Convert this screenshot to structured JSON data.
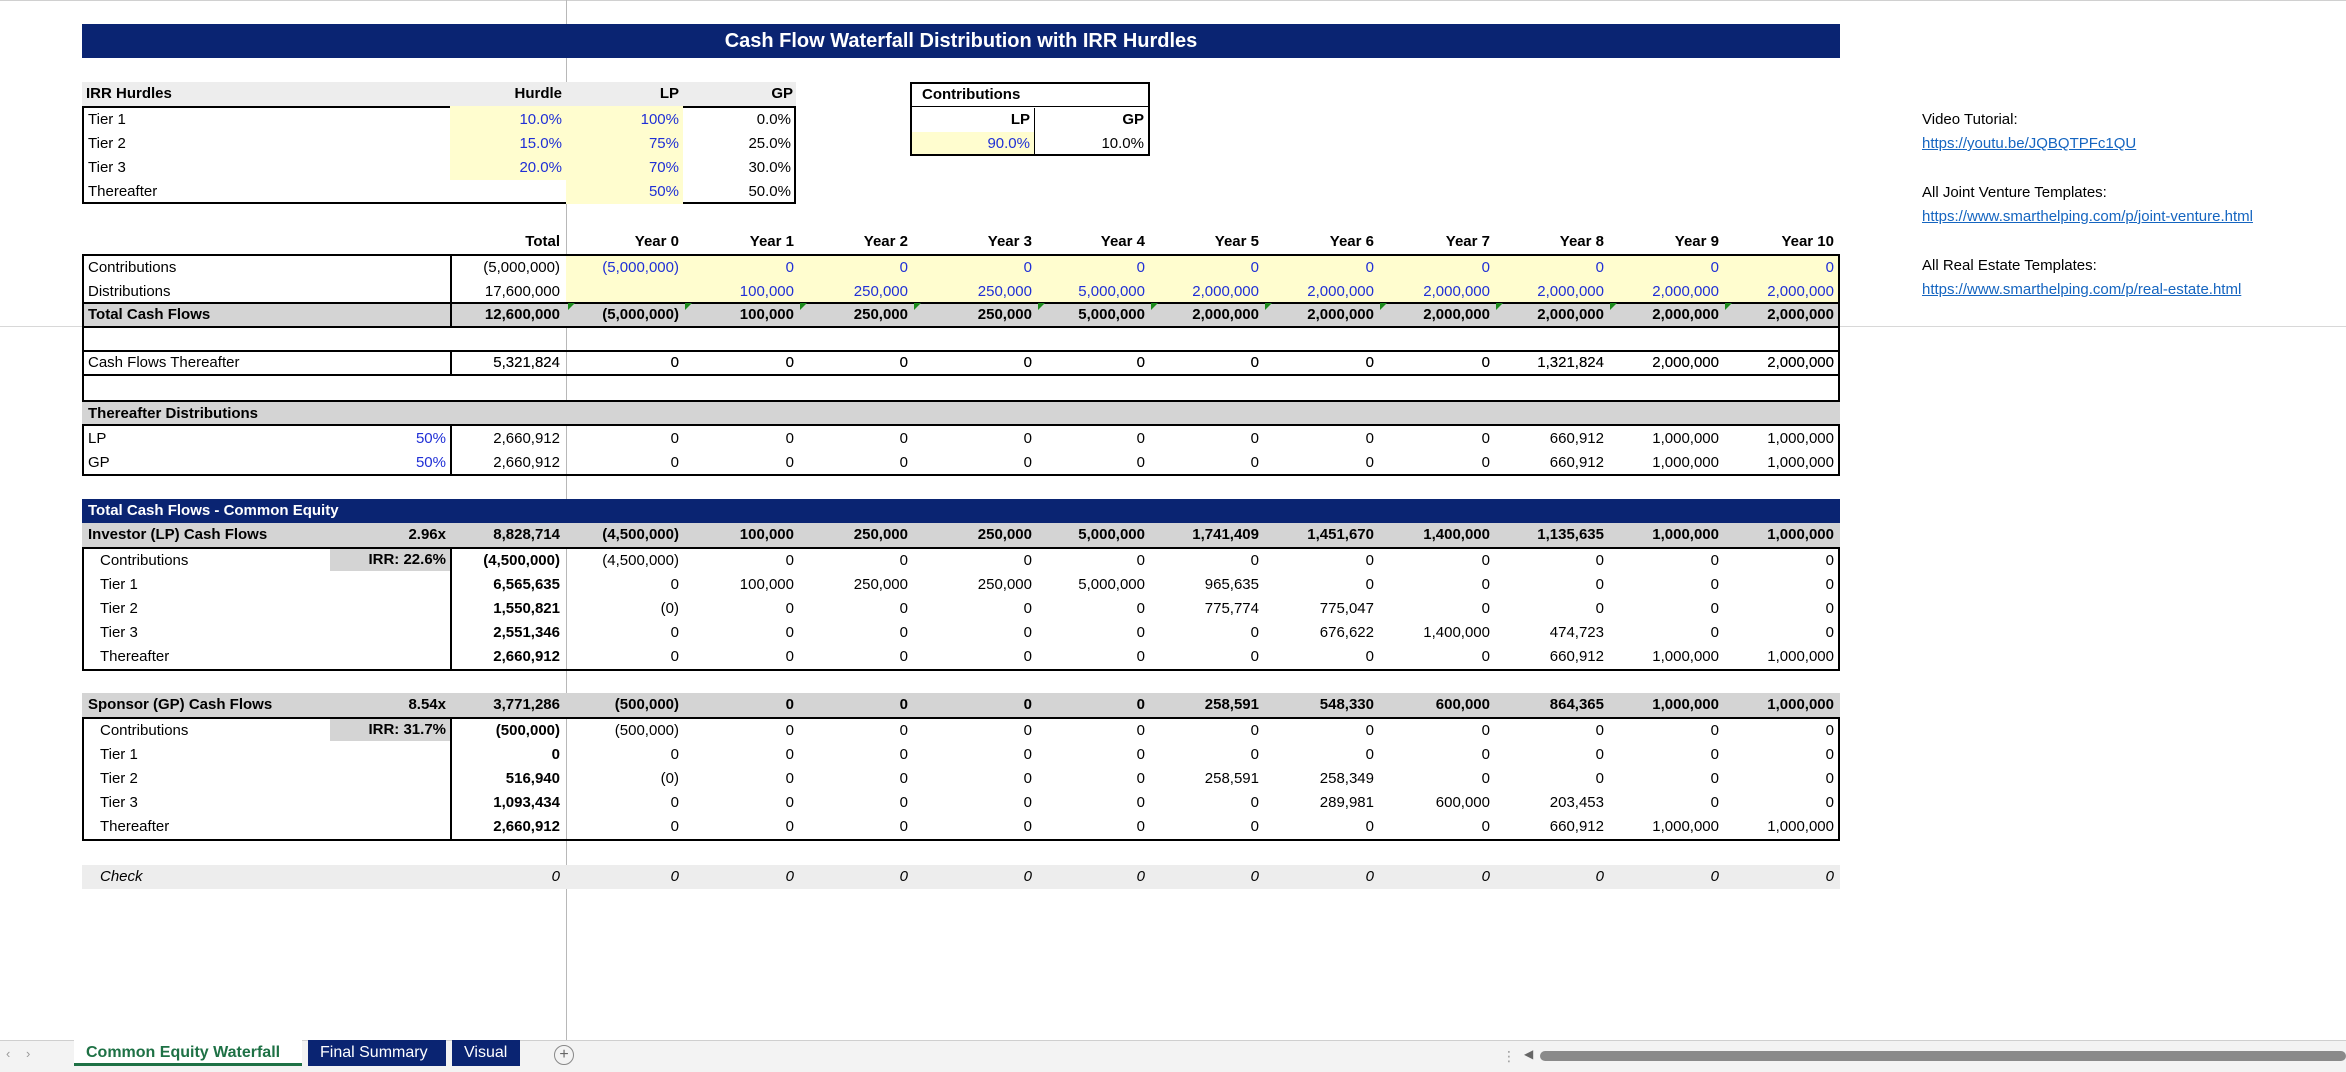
{
  "title": "Cash Flow Waterfall Distribution with IRR Hurdles",
  "hurdles": {
    "headers": [
      "IRR Hurdles",
      "Hurdle",
      "LP",
      "GP"
    ],
    "rows": [
      {
        "name": "Tier 1",
        "hurdle": "10.0%",
        "lp": "100%",
        "gp": "0.0%"
      },
      {
        "name": "Tier 2",
        "hurdle": "15.0%",
        "lp": "75%",
        "gp": "25.0%"
      },
      {
        "name": "Tier 3",
        "hurdle": "20.0%",
        "lp": "70%",
        "gp": "30.0%"
      },
      {
        "name": "Thereafter",
        "hurdle": "",
        "lp": "50%",
        "gp": "50.0%"
      }
    ]
  },
  "contributions_box": {
    "title": "Contributions",
    "lp_label": "LP",
    "gp_label": "GP",
    "lp": "90.0%",
    "gp": "10.0%"
  },
  "links": [
    {
      "label": "Video Tutorial:",
      "url": "https://youtu.be/JQBQTPFc1QU"
    },
    {
      "label": "All Joint Venture Templates:",
      "url": "https://www.smarthelping.com/p/joint-venture.html"
    },
    {
      "label": "All Real Estate Templates:",
      "url": "https://www.smarthelping.com/p/real-estate.html"
    }
  ],
  "columns": [
    "Total",
    "Year 0",
    "Year 1",
    "Year 2",
    "Year 3",
    "Year 4",
    "Year 5",
    "Year 6",
    "Year 7",
    "Year 8",
    "Year 9",
    "Year 10"
  ],
  "cash": {
    "contributions": {
      "label": "Contributions",
      "values": [
        "(5,000,000)",
        "(5,000,000)",
        "0",
        "0",
        "0",
        "0",
        "0",
        "0",
        "0",
        "0",
        "0",
        "0"
      ]
    },
    "distributions": {
      "label": "Distributions",
      "values": [
        "17,600,000",
        "",
        "100,000",
        "250,000",
        "250,000",
        "5,000,000",
        "2,000,000",
        "2,000,000",
        "2,000,000",
        "2,000,000",
        "2,000,000",
        "2,000,000"
      ]
    },
    "total": {
      "label": "Total Cash Flows",
      "values": [
        "12,600,000",
        "(5,000,000)",
        "100,000",
        "250,000",
        "250,000",
        "5,000,000",
        "2,000,000",
        "2,000,000",
        "2,000,000",
        "2,000,000",
        "2,000,000",
        "2,000,000"
      ]
    }
  },
  "thereafter": {
    "label": "Cash Flows Thereafter",
    "values": [
      "5,321,824",
      "0",
      "0",
      "0",
      "0",
      "0",
      "0",
      "0",
      "0",
      "1,321,824",
      "2,000,000",
      "2,000,000"
    ]
  },
  "thereafter_dist": {
    "title": "Thereafter Distributions",
    "rows": [
      {
        "label": "LP",
        "pct": "50%",
        "values": [
          "2,660,912",
          "0",
          "0",
          "0",
          "0",
          "0",
          "0",
          "0",
          "0",
          "660,912",
          "1,000,000",
          "1,000,000"
        ]
      },
      {
        "label": "GP",
        "pct": "50%",
        "values": [
          "2,660,912",
          "0",
          "0",
          "0",
          "0",
          "0",
          "0",
          "0",
          "0",
          "660,912",
          "1,000,000",
          "1,000,000"
        ]
      }
    ]
  },
  "common_equity": {
    "title": "Total Cash Flows - Common Equity",
    "lp": {
      "label": "Investor (LP) Cash Flows",
      "multiple": "2.96x",
      "irr": "IRR: 22.6%",
      "values": [
        "8,828,714",
        "(4,500,000)",
        "100,000",
        "250,000",
        "250,000",
        "5,000,000",
        "1,741,409",
        "1,451,670",
        "1,400,000",
        "1,135,635",
        "1,000,000",
        "1,000,000"
      ],
      "rows": [
        {
          "label": "Contributions",
          "values": [
            "(4,500,000)",
            "(4,500,000)",
            "0",
            "0",
            "0",
            "0",
            "0",
            "0",
            "0",
            "0",
            "0",
            "0"
          ]
        },
        {
          "label": "Tier 1",
          "values": [
            "6,565,635",
            "0",
            "100,000",
            "250,000",
            "250,000",
            "5,000,000",
            "965,635",
            "0",
            "0",
            "0",
            "0",
            "0"
          ]
        },
        {
          "label": "Tier 2",
          "values": [
            "1,550,821",
            "(0)",
            "0",
            "0",
            "0",
            "0",
            "775,774",
            "775,047",
            "0",
            "0",
            "0",
            "0"
          ]
        },
        {
          "label": "Tier 3",
          "values": [
            "2,551,346",
            "0",
            "0",
            "0",
            "0",
            "0",
            "0",
            "676,622",
            "1,400,000",
            "474,723",
            "0",
            "0"
          ]
        },
        {
          "label": "Thereafter",
          "values": [
            "2,660,912",
            "0",
            "0",
            "0",
            "0",
            "0",
            "0",
            "0",
            "0",
            "660,912",
            "1,000,000",
            "1,000,000"
          ]
        }
      ]
    },
    "gp": {
      "label": "Sponsor (GP) Cash Flows",
      "multiple": "8.54x",
      "irr": "IRR: 31.7%",
      "values": [
        "3,771,286",
        "(500,000)",
        "0",
        "0",
        "0",
        "0",
        "258,591",
        "548,330",
        "600,000",
        "864,365",
        "1,000,000",
        "1,000,000"
      ],
      "rows": [
        {
          "label": "Contributions",
          "values": [
            "(500,000)",
            "(500,000)",
            "0",
            "0",
            "0",
            "0",
            "0",
            "0",
            "0",
            "0",
            "0",
            "0"
          ]
        },
        {
          "label": "Tier 1",
          "values": [
            "0",
            "0",
            "0",
            "0",
            "0",
            "0",
            "0",
            "0",
            "0",
            "0",
            "0",
            "0"
          ]
        },
        {
          "label": "Tier 2",
          "values": [
            "516,940",
            "(0)",
            "0",
            "0",
            "0",
            "0",
            "258,591",
            "258,349",
            "0",
            "0",
            "0",
            "0"
          ]
        },
        {
          "label": "Tier 3",
          "values": [
            "1,093,434",
            "0",
            "0",
            "0",
            "0",
            "0",
            "0",
            "289,981",
            "600,000",
            "203,453",
            "0",
            "0"
          ]
        },
        {
          "label": "Thereafter",
          "values": [
            "2,660,912",
            "0",
            "0",
            "0",
            "0",
            "0",
            "0",
            "0",
            "0",
            "660,912",
            "1,000,000",
            "1,000,000"
          ]
        }
      ]
    }
  },
  "check": {
    "label": "Check",
    "values": [
      "0",
      "0",
      "0",
      "0",
      "0",
      "0",
      "0",
      "0",
      "0",
      "0",
      "0",
      "0"
    ]
  },
  "tabs": [
    {
      "label": "Common Equity Waterfall",
      "active": true
    },
    {
      "label": "Final Summary",
      "active": false
    },
    {
      "label": "Visual",
      "active": false
    }
  ],
  "icons": {
    "add_sheet": "plus-circle-icon",
    "scroll_left": "arrow-left-icon",
    "scroll_right": "arrow-right-icon"
  },
  "colors": {
    "header_navy": "#0a2472",
    "input_blue": "#1f2fd6",
    "input_yellow": "#fffdcf",
    "subtotal_gray": "#d4d4d4",
    "active_tab_green": "#1e7145",
    "link_blue": "#1565c0"
  }
}
